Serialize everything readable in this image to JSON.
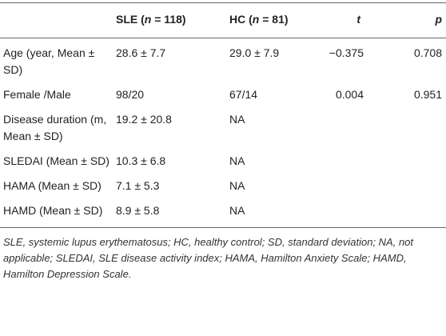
{
  "table": {
    "header": [
      [],
      [
        "SLE (",
        "n",
        " = 118)"
      ],
      [
        "HC (",
        "n",
        " = 81)"
      ],
      [
        "",
        "t",
        ""
      ],
      [
        "",
        "p",
        ""
      ]
    ],
    "rows": [
      [
        "Age (year, Mean ± SD)",
        "28.6 ± 7.7",
        "29.0 ± 7.9",
        "−0.375",
        "0.708"
      ],
      [
        "Female /Male",
        "98/20",
        "67/14",
        "0.004",
        "0.951"
      ],
      [
        "Disease duration (m, Mean ± SD)",
        "19.2 ± 20.8",
        "NA",
        "",
        ""
      ],
      [
        "SLEDAI (Mean ± SD)",
        "10.3 ± 6.8",
        "NA",
        "",
        ""
      ],
      [
        "HAMA (Mean ± SD)",
        "7.1 ± 5.3",
        "NA",
        "",
        ""
      ],
      [
        "HAMD (Mean ± SD)",
        "8.9 ± 5.8",
        "NA",
        "",
        ""
      ]
    ],
    "footnote": "SLE, systemic lupus erythematosus; HC, healthy control; SD, standard deviation; NA, not applicable; SLEDAI, SLE disease activity index; HAMA, Hamilton Anxiety Scale; HAMD, Hamilton Depression Scale."
  }
}
